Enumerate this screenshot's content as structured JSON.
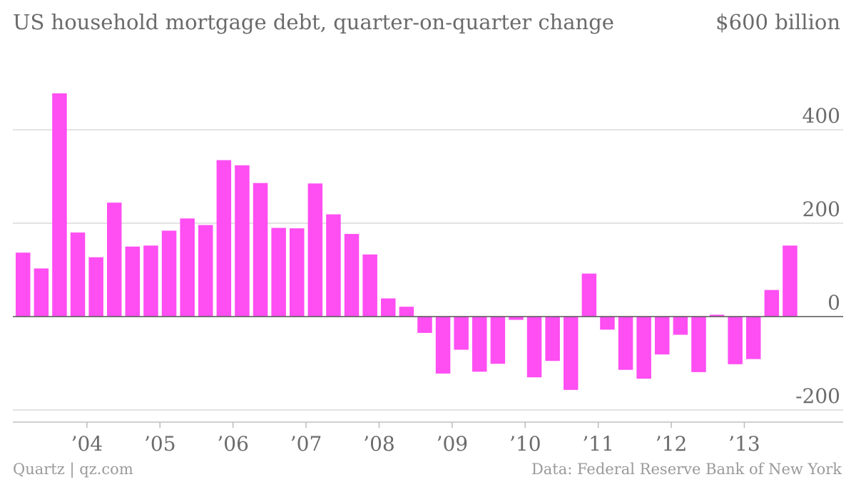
{
  "header": {
    "title": "US household mortgage debt, quarter-on-quarter change",
    "unit_label": "$600 billion"
  },
  "footer": {
    "credit": "Quartz | qz.com",
    "source": "Data: Federal Reserve Bank of New York"
  },
  "chart_data": {
    "type": "bar",
    "title": "US household mortgage debt, quarter-on-quarter change",
    "ylabel": "",
    "xlabel": "",
    "ylim": [
      -200,
      600
    ],
    "y_ticks": [
      {
        "value": 400,
        "label": "400"
      },
      {
        "value": 200,
        "label": "200"
      },
      {
        "value": 0,
        "label": "0"
      },
      {
        "value": -200,
        "label": "-200"
      }
    ],
    "x_ticks": [
      {
        "index": 3,
        "label": "’04"
      },
      {
        "index": 7,
        "label": "’05"
      },
      {
        "index": 11,
        "label": "’06"
      },
      {
        "index": 15,
        "label": "’07"
      },
      {
        "index": 19,
        "label": "’08"
      },
      {
        "index": 23,
        "label": "’09"
      },
      {
        "index": 27,
        "label": "’10"
      },
      {
        "index": 31,
        "label": "’11"
      },
      {
        "index": 35,
        "label": "’12"
      },
      {
        "index": 39,
        "label": "’13"
      }
    ],
    "grid": true,
    "bar_color": "#ff4ef2",
    "values": [
      137,
      103,
      478,
      180,
      127,
      244,
      150,
      152,
      184,
      210,
      196,
      335,
      324,
      286,
      190,
      189,
      285,
      219,
      177,
      133,
      39,
      21,
      -35,
      -122,
      -71,
      -118,
      -101,
      -7,
      -130,
      -95,
      -157,
      92,
      -28,
      -114,
      -133,
      -81,
      -39,
      -119,
      4,
      -102,
      -91,
      57,
      152
    ]
  }
}
